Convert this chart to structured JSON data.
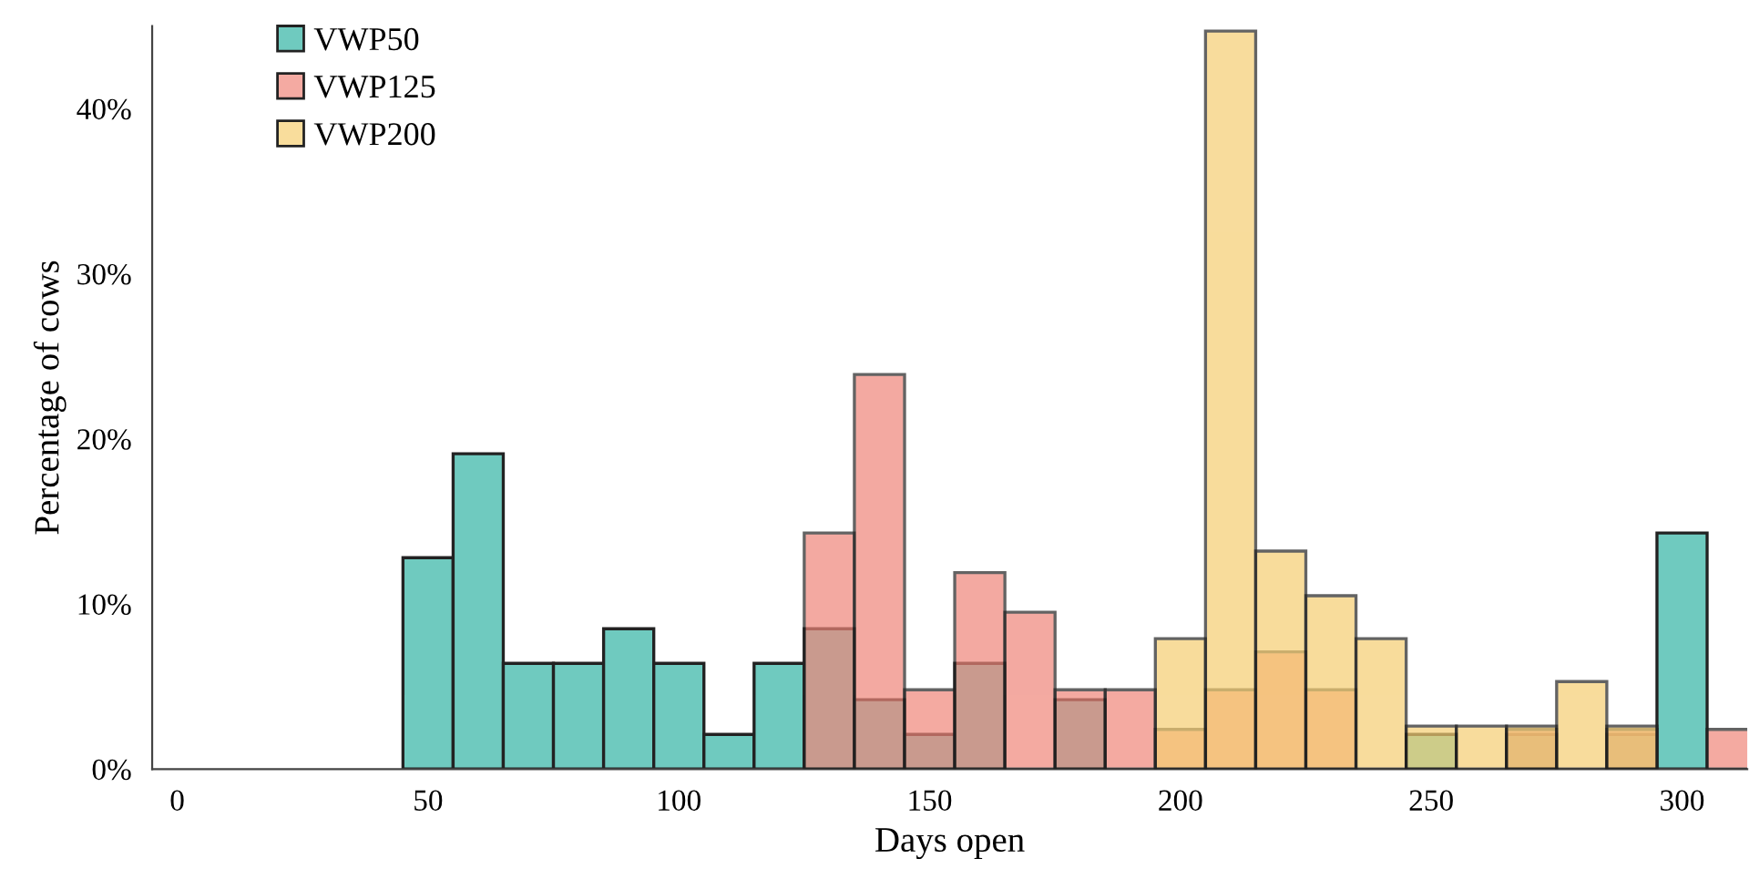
{
  "chart_data": {
    "type": "histogram",
    "xlabel": "Days open",
    "ylabel": "Percentage of cows",
    "bins": [
      45,
      55,
      65,
      75,
      85,
      95,
      105,
      115,
      125,
      135,
      145,
      155,
      165,
      175,
      185,
      195,
      205,
      215,
      225,
      235,
      245,
      255,
      265,
      275,
      285,
      295,
      305,
      315
    ],
    "series": [
      {
        "name": "VWP50",
        "color": "#6fcabf",
        "values": [
          12.8,
          19.1,
          6.4,
          6.4,
          8.5,
          6.4,
          2.1,
          6.4,
          8.5,
          4.2,
          2.1,
          6.4,
          0,
          4.2,
          0,
          0,
          0,
          0,
          0,
          0,
          2.1,
          0,
          2.1,
          0,
          2.1,
          14.3,
          0
        ]
      },
      {
        "name": "VWP125",
        "color": "#f4aaa2",
        "values": [
          0,
          0,
          0,
          0,
          0,
          0,
          0,
          0,
          14.3,
          23.9,
          4.8,
          11.9,
          9.5,
          4.8,
          4.8,
          2.4,
          4.8,
          7.1,
          4.8,
          0,
          0,
          0,
          2.4,
          0,
          2.4,
          0,
          2.4
        ]
      },
      {
        "name": "VWP200",
        "color": "#f9dd9c",
        "values": [
          0,
          0,
          0,
          0,
          0,
          0,
          0,
          0,
          0,
          0,
          0,
          0,
          0,
          0,
          0,
          7.9,
          44.7,
          13.2,
          10.5,
          7.9,
          2.6,
          2.6,
          2.6,
          5.3,
          2.6,
          0,
          0
        ]
      }
    ],
    "xlim": [
      -5,
      313
    ],
    "xticks": [
      0,
      50,
      100,
      150,
      200,
      250,
      300
    ],
    "ylim": [
      0,
      45
    ],
    "yticks": [
      {
        "value": 0,
        "label": "0%"
      },
      {
        "value": 10,
        "label": "10%"
      },
      {
        "value": 20,
        "label": "20%"
      },
      {
        "value": 30,
        "label": "30%"
      },
      {
        "value": 40,
        "label": "40%"
      }
    ],
    "grid": false,
    "legend": "top left"
  }
}
